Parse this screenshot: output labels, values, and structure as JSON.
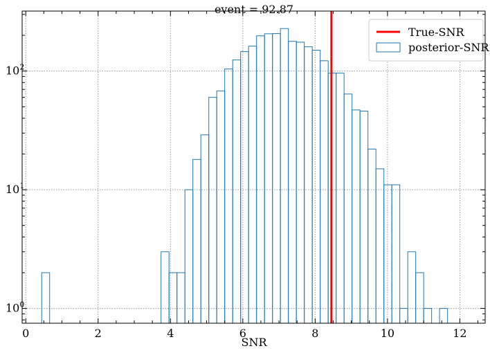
{
  "chart_data": {
    "type": "histogram",
    "title": "event = 92.87",
    "xlabel": "SNR",
    "ylabel": "",
    "xlim": [
      -0.1,
      12.7
    ],
    "ylim": [
      0.75,
      320
    ],
    "yscale": "log",
    "grid": true,
    "legend_position": "top-right",
    "x_ticks": [
      0,
      2,
      4,
      6,
      8,
      10,
      12
    ],
    "y_ticks": [
      {
        "value": 1,
        "base": "10",
        "exp": "0"
      },
      {
        "value": 10,
        "base": "10",
        "exp": "1"
      },
      {
        "value": 100,
        "base": "10",
        "exp": "2"
      }
    ],
    "bin_edges": [
      0.44,
      0.66,
      0.88,
      1.1,
      1.32,
      1.54,
      1.76,
      1.98,
      2.2,
      2.42,
      2.64,
      2.86,
      3.08,
      3.3,
      3.52,
      3.74,
      3.96,
      4.18,
      4.4,
      4.62,
      4.84,
      5.06,
      5.28,
      5.5,
      5.72,
      5.94,
      6.16,
      6.38,
      6.6,
      6.82,
      7.04,
      7.26,
      7.48,
      7.7,
      7.92,
      8.14,
      8.36,
      8.58,
      8.8,
      9.02,
      9.24,
      9.46,
      9.68,
      9.9,
      10.12,
      10.34,
      10.56,
      10.78,
      11.0,
      11.22,
      11.44,
      11.66,
      11.88,
      12.1
    ],
    "counts": [
      2,
      0,
      0,
      0,
      0,
      0,
      0,
      0,
      0,
      0,
      0,
      0,
      0,
      0,
      0,
      3,
      2,
      2,
      10,
      18,
      29,
      60,
      68,
      104,
      124,
      146,
      162,
      198,
      206,
      207,
      228,
      178,
      175,
      160,
      150,
      122,
      96,
      96,
      64,
      47,
      46,
      22,
      15,
      11,
      11,
      1,
      3,
      2,
      1,
      0,
      1,
      0,
      0
    ],
    "vline": {
      "x": 8.45,
      "color": "#ff0000",
      "label": "True-SNR"
    },
    "series": [
      {
        "name": "posterior-SNR",
        "color": "#1f77b4",
        "style": "step"
      }
    ]
  }
}
